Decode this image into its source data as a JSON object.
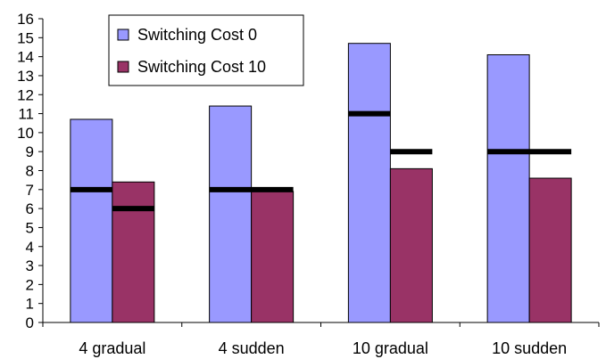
{
  "chart_data": {
    "type": "bar",
    "categories": [
      "4 gradual",
      "4 sudden",
      "10 gradual",
      "10 sudden"
    ],
    "series": [
      {
        "name": "Switching Cost 0",
        "values": [
          10.7,
          11.4,
          14.7,
          14.1
        ],
        "color": "#9999ff",
        "markers": [
          7,
          7,
          11,
          9
        ]
      },
      {
        "name": "Switching Cost 10",
        "values": [
          7.4,
          6.9,
          8.1,
          7.6
        ],
        "color": "#993366",
        "markers": [
          6,
          7,
          9,
          9
        ]
      }
    ],
    "marker_color": "#000000",
    "ylim": [
      0,
      16
    ],
    "yticks": [
      "0",
      "1",
      "2",
      "3",
      "4",
      "5",
      "6",
      "7",
      "8",
      "9",
      "10",
      "11",
      "12",
      "13",
      "14",
      "15",
      "16"
    ],
    "xlabel": "",
    "ylabel": "",
    "title": "",
    "legend_position": "top-left",
    "grid": false
  }
}
